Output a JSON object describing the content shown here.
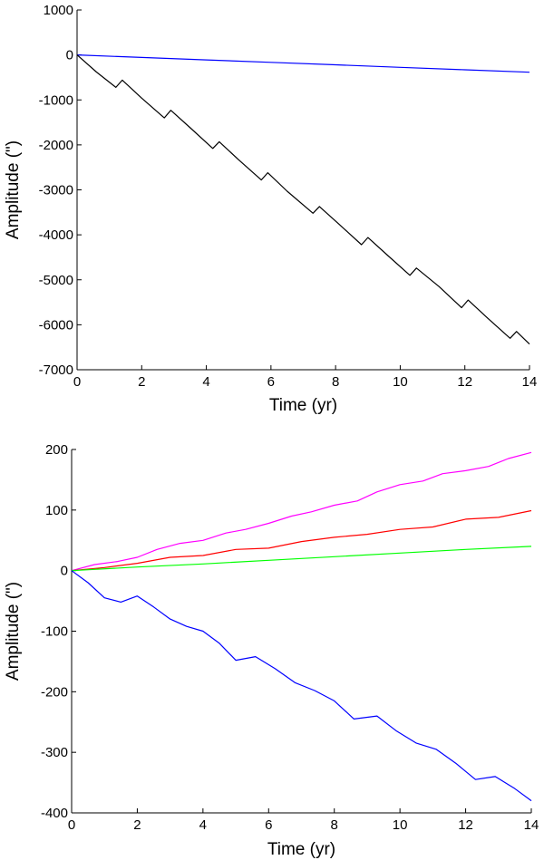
{
  "chart_data": [
    {
      "type": "line",
      "xlabel": "Time (yr)",
      "ylabel": "Amplitude (\")",
      "xlim": [
        0,
        14
      ],
      "ylim": [
        -7000,
        1000
      ],
      "xticks": [
        0,
        2,
        4,
        6,
        8,
        10,
        12,
        14
      ],
      "yticks": [
        1000,
        0,
        -1000,
        -2000,
        -3000,
        -4000,
        -5000,
        -6000,
        -7000
      ],
      "grid": false,
      "series": [
        {
          "color": "#0000ff",
          "x": [
            0,
            2,
            4,
            6,
            8,
            10,
            12,
            14
          ],
          "y": [
            0,
            -55,
            -110,
            -165,
            -220,
            -275,
            -330,
            -385
          ]
        },
        {
          "color": "#000000",
          "x": [
            0,
            0.6,
            1.2,
            1.4,
            2.0,
            2.7,
            2.9,
            3.5,
            4.2,
            4.4,
            5.0,
            5.7,
            5.9,
            6.5,
            7.3,
            7.5,
            8.1,
            8.8,
            9.0,
            9.6,
            10.3,
            10.5,
            11.2,
            11.9,
            12.1,
            12.7,
            13.4,
            13.6,
            14.0
          ],
          "y": [
            0,
            -380,
            -720,
            -560,
            -960,
            -1400,
            -1230,
            -1620,
            -2080,
            -1930,
            -2330,
            -2780,
            -2620,
            -3030,
            -3520,
            -3370,
            -3760,
            -4220,
            -4060,
            -4450,
            -4900,
            -4740,
            -5150,
            -5620,
            -5450,
            -5850,
            -6300,
            -6150,
            -6430
          ]
        }
      ]
    },
    {
      "type": "line",
      "xlabel": "Time (yr)",
      "ylabel": "Amplitude (\")",
      "xlim": [
        0,
        14
      ],
      "ylim": [
        -400,
        200
      ],
      "xticks": [
        0,
        2,
        4,
        6,
        8,
        10,
        12,
        14
      ],
      "yticks": [
        200,
        100,
        0,
        -100,
        -200,
        -300,
        -400
      ],
      "grid": false,
      "series": [
        {
          "color": "#ff00ff",
          "x": [
            0,
            0.7,
            1.4,
            2.0,
            2.6,
            3.3,
            4.0,
            4.7,
            5.3,
            6.0,
            6.7,
            7.3,
            8.0,
            8.7,
            9.3,
            10.0,
            10.7,
            11.3,
            12.0,
            12.7,
            13.3,
            14.0
          ],
          "y": [
            0,
            10,
            15,
            22,
            35,
            45,
            50,
            62,
            68,
            78,
            90,
            97,
            108,
            115,
            130,
            142,
            148,
            160,
            165,
            172,
            185,
            195
          ]
        },
        {
          "color": "#ff0000",
          "x": [
            0,
            1,
            2,
            3,
            4,
            5,
            6,
            7,
            8,
            9,
            10,
            11,
            12,
            13,
            14
          ],
          "y": [
            0,
            5,
            12,
            22,
            25,
            35,
            37,
            48,
            55,
            60,
            68,
            72,
            85,
            88,
            99
          ]
        },
        {
          "color": "#00ff00",
          "x": [
            0,
            2,
            4,
            6,
            8,
            10,
            12,
            14
          ],
          "y": [
            0,
            6,
            11,
            17,
            23,
            29,
            35,
            40
          ]
        },
        {
          "color": "#0000ff",
          "x": [
            0,
            0.5,
            1.0,
            1.5,
            2.0,
            2.5,
            3.0,
            3.5,
            4.0,
            4.5,
            5.0,
            5.6,
            6.2,
            6.8,
            7.4,
            8.0,
            8.6,
            9.3,
            9.9,
            10.5,
            11.1,
            11.7,
            12.3,
            12.9,
            13.5,
            14.0
          ],
          "y": [
            0,
            -20,
            -45,
            -52,
            -42,
            -60,
            -80,
            -92,
            -100,
            -120,
            -148,
            -142,
            -162,
            -185,
            -198,
            -215,
            -245,
            -240,
            -265,
            -285,
            -295,
            -318,
            -345,
            -340,
            -360,
            -380
          ]
        }
      ]
    }
  ]
}
